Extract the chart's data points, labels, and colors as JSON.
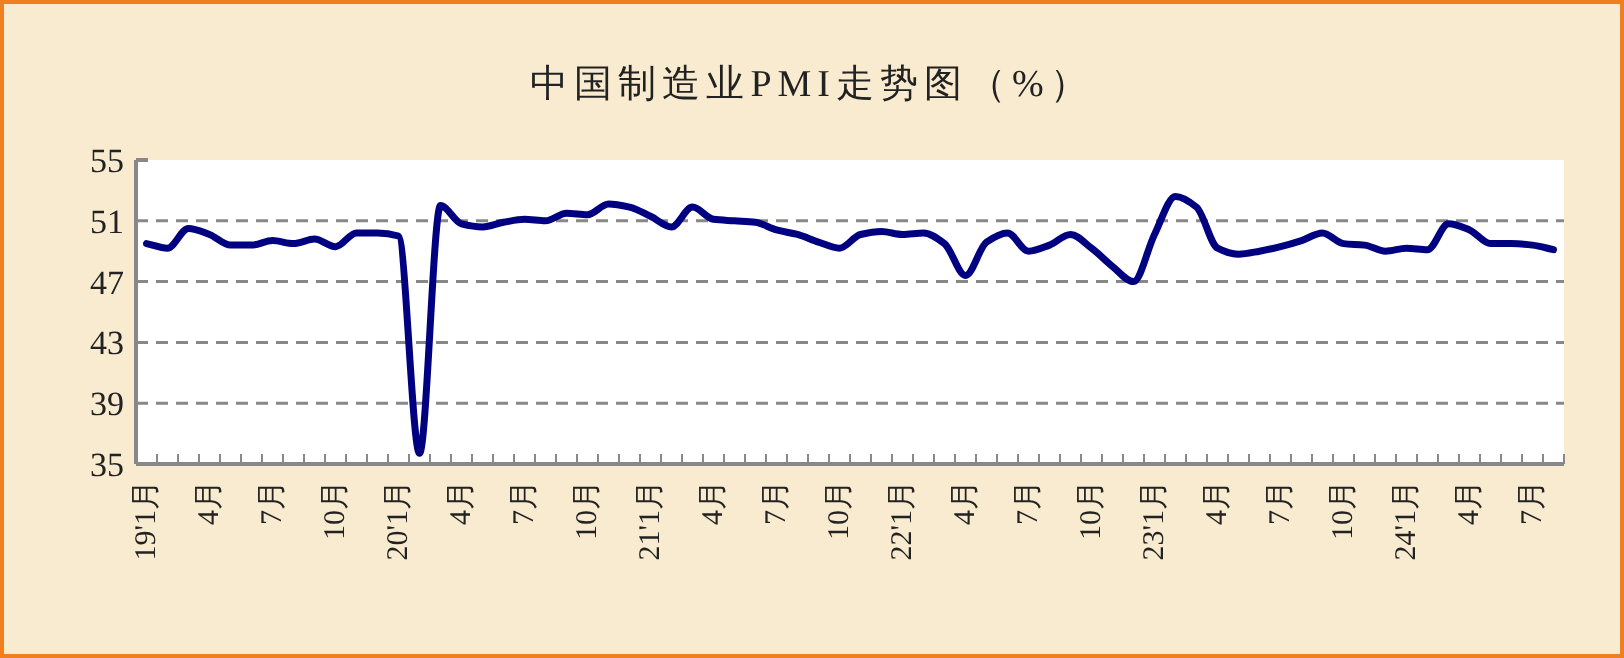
{
  "chart_data": {
    "type": "line",
    "title": "中国制造业PMI走势图（%）",
    "categories": [
      "19'1月",
      null,
      null,
      "4月",
      null,
      null,
      "7月",
      null,
      null,
      "10月",
      null,
      null,
      "20'1月",
      null,
      null,
      "4月",
      null,
      null,
      "7月",
      null,
      null,
      "10月",
      null,
      null,
      "21'1月",
      null,
      null,
      "4月",
      null,
      null,
      "7月",
      null,
      null,
      "10月",
      null,
      null,
      "22'1月",
      null,
      null,
      "4月",
      null,
      null,
      "7月",
      null,
      null,
      "10月",
      null,
      null,
      "23'1月",
      null,
      null,
      "4月",
      null,
      null,
      "7月",
      null,
      null,
      "10月",
      null,
      null,
      "24'1月",
      null,
      null,
      "4月",
      null,
      null,
      "7月",
      null
    ],
    "series": [
      {
        "color": "#000080",
        "values": [
          49.5,
          49.2,
          50.5,
          50.1,
          49.4,
          49.4,
          49.7,
          49.5,
          49.8,
          49.3,
          50.2,
          50.2,
          50.0,
          35.7,
          52.0,
          50.8,
          50.6,
          50.9,
          51.1,
          51.0,
          51.5,
          51.4,
          52.1,
          51.9,
          51.3,
          50.6,
          51.9,
          51.1,
          51.0,
          50.9,
          50.4,
          50.1,
          49.6,
          49.2,
          50.1,
          50.3,
          50.1,
          50.2,
          49.5,
          47.4,
          49.6,
          50.2,
          49.0,
          49.4,
          50.1,
          49.2,
          48.0,
          47.0,
          50.1,
          52.6,
          51.9,
          49.2,
          48.8,
          49.0,
          49.3,
          49.7,
          50.2,
          49.5,
          49.4,
          49.0,
          49.2,
          49.1,
          50.8,
          50.4,
          49.5,
          49.5,
          49.4,
          49.1
        ]
      }
    ],
    "ylim": [
      35,
      55
    ],
    "yticks": [
      35,
      39,
      43,
      47,
      51,
      55
    ],
    "grid": "y",
    "line_style": "solid"
  }
}
